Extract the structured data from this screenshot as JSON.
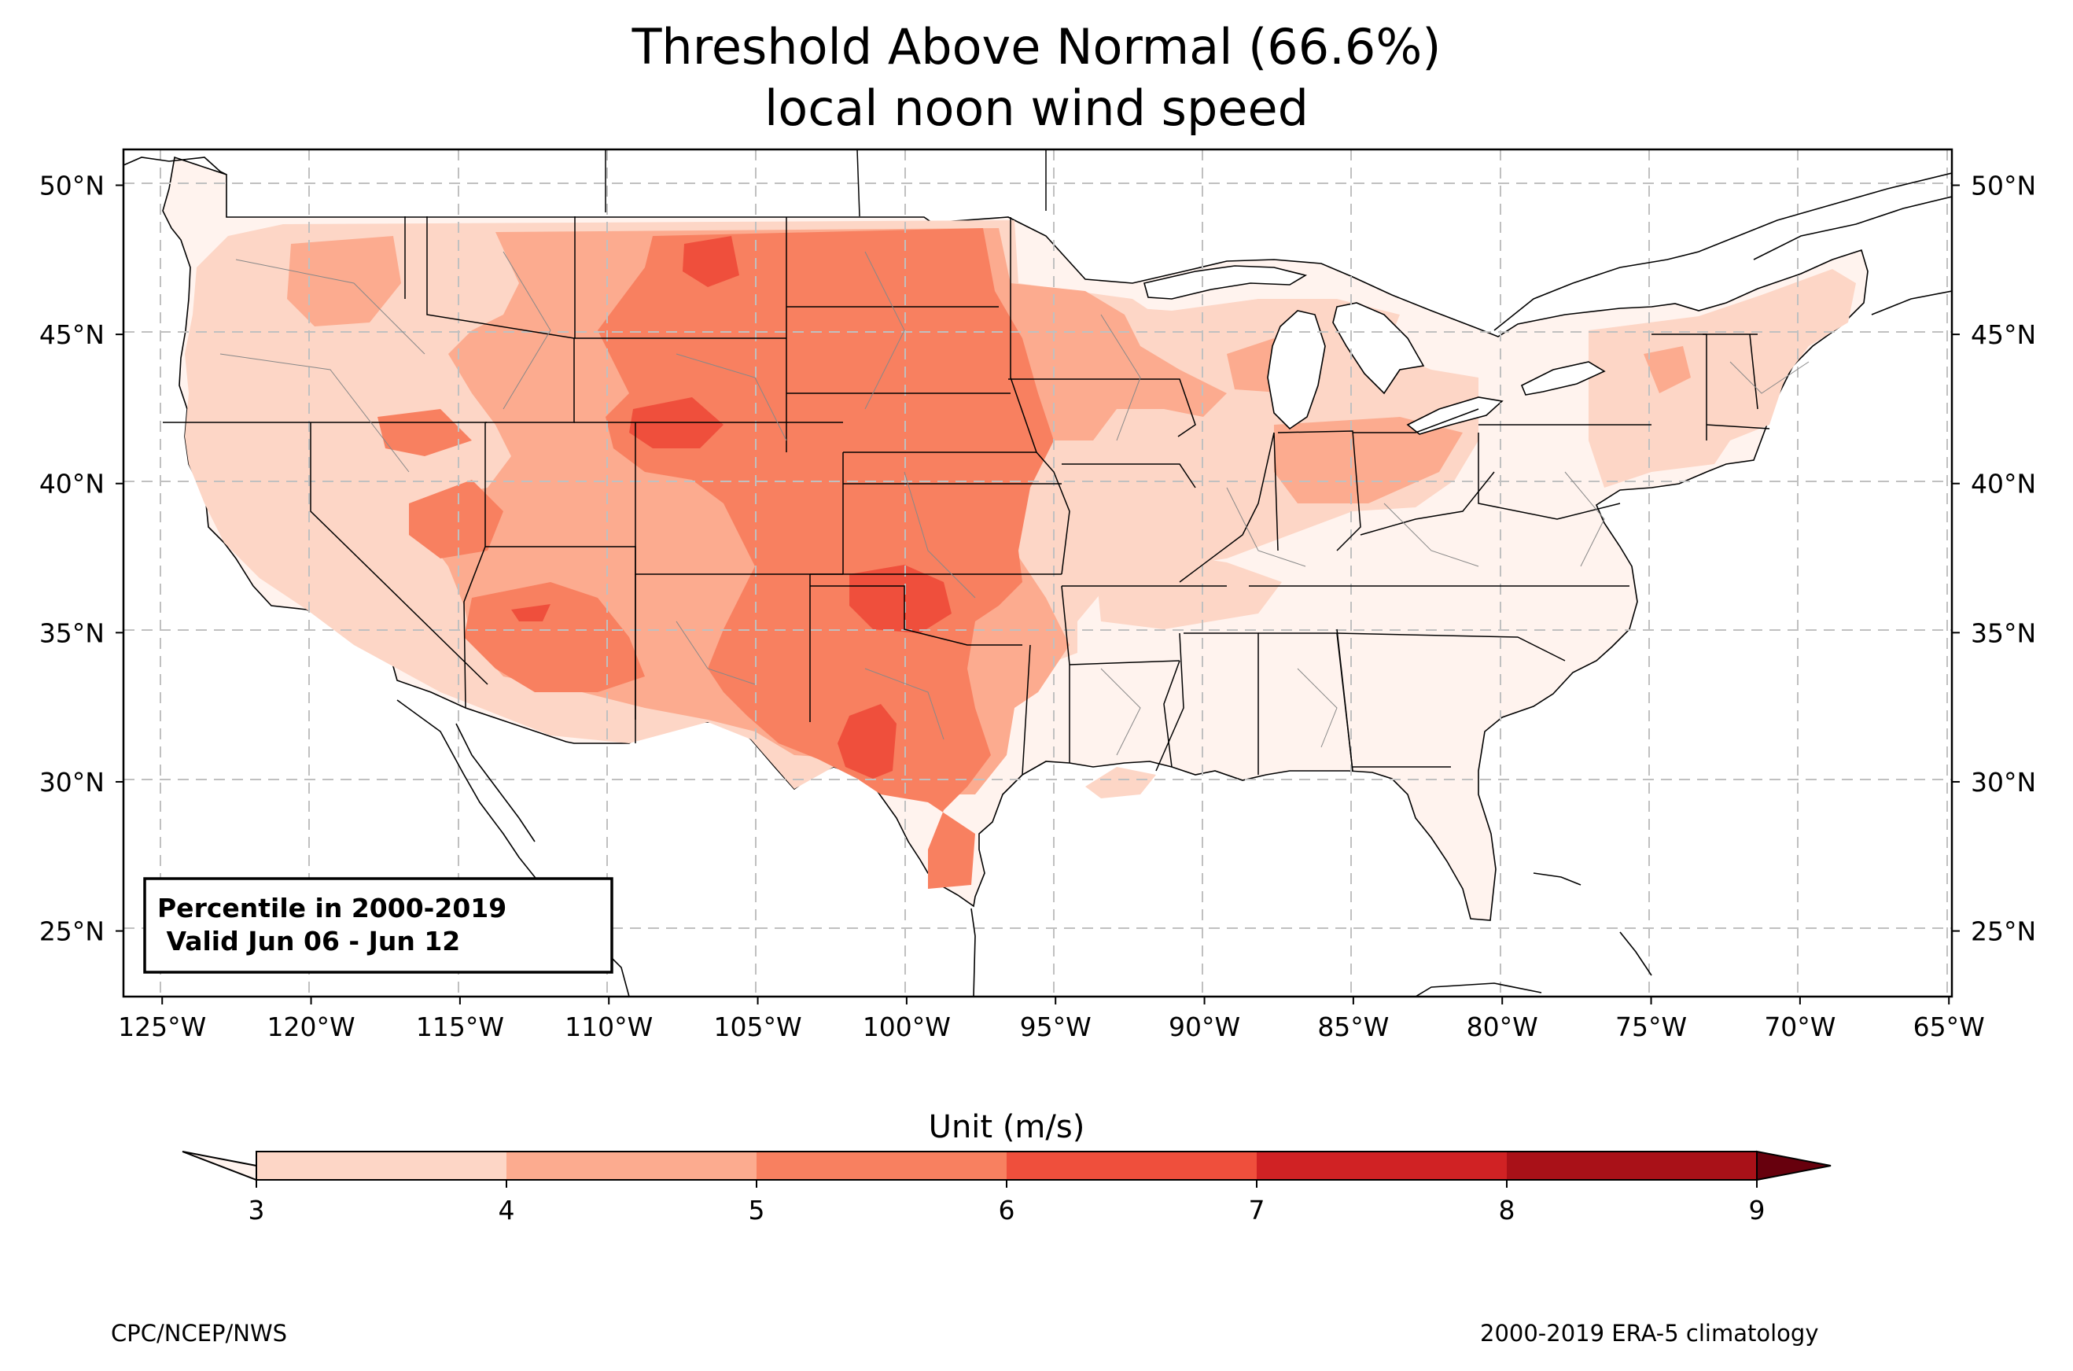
{
  "title": {
    "line1": "Threshold Above Normal (66.6%)",
    "line2": "local noon wind speed"
  },
  "info_box": {
    "line1": "Percentile in 2000-2019",
    "line2": " Valid Jun 06 - Jun 12"
  },
  "map": {
    "region": "Contiguous United States",
    "lon_range": [
      -126.3,
      -64.9
    ],
    "lat_range": [
      22.8,
      51.2
    ],
    "lon_ticks": [
      "125°W",
      "120°W",
      "115°W",
      "110°W",
      "105°W",
      "100°W",
      "95°W",
      "90°W",
      "85°W",
      "80°W",
      "75°W",
      "70°W",
      "65°W"
    ],
    "lat_ticks": [
      "25°N",
      "30°N",
      "35°N",
      "40°N",
      "45°N",
      "50°N"
    ],
    "gridlines": "dashed",
    "field_description": "wind speed threshold shaded by color bins",
    "highlights": [
      {
        "area": "Central Plains (KS/NE/SD/OK)",
        "bin": "5-6"
      },
      {
        "area": "West Texas / Texas Panhandle",
        "bin": "6-7"
      },
      {
        "area": "Southern Wyoming",
        "bin": "6-7"
      },
      {
        "area": "Southeast US",
        "bin": "3"
      }
    ]
  },
  "colorbar": {
    "title": "Unit (m/s)",
    "ticks": [
      "3",
      "4",
      "5",
      "6",
      "7",
      "8",
      "9"
    ],
    "bins": [
      {
        "from": 3,
        "to": 4,
        "color": "#fdd6c6"
      },
      {
        "from": 4,
        "to": 5,
        "color": "#fcab8f"
      },
      {
        "from": 5,
        "to": 6,
        "color": "#f88060"
      },
      {
        "from": 6,
        "to": 7,
        "color": "#ef4f3c"
      },
      {
        "from": 7,
        "to": 8,
        "color": "#d02224"
      },
      {
        "from": 8,
        "to": 9,
        "color": "#a91118"
      }
    ],
    "under_color": "#fff3ee",
    "over_color": "#67000d",
    "extend": "both"
  },
  "footer": {
    "left": "CPC/NCEP/NWS",
    "right": "2000-2019 ERA-5 climatology"
  }
}
